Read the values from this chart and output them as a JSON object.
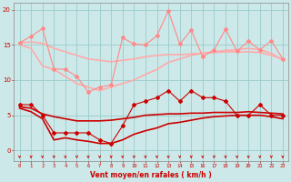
{
  "bg_color": "#cce8e8",
  "grid_color": "#99cccc",
  "x": [
    0,
    1,
    2,
    3,
    4,
    5,
    6,
    7,
    8,
    9,
    10,
    11,
    12,
    13,
    14,
    15,
    16,
    17,
    18,
    19,
    20,
    21,
    22,
    23
  ],
  "xlabel": "Vent moyen/en rafales ( km/h )",
  "xlabel_color": "#cc0000",
  "tick_color": "#cc0000",
  "ylabel_ticks": [
    0,
    5,
    10,
    15,
    20
  ],
  "ylim": [
    -1.5,
    21
  ],
  "xlim": [
    -0.5,
    23.5
  ],
  "line1_y": [
    15.3,
    16.2,
    17.3,
    11.6,
    11.5,
    10.5,
    8.3,
    9.0,
    9.3,
    16.0,
    15.1,
    15.0,
    16.3,
    19.8,
    15.1,
    17.1,
    13.3,
    14.3,
    17.2,
    14.1,
    15.5,
    14.3,
    15.6,
    13.0
  ],
  "line1_color": "#ff8888",
  "line1_marker": "D",
  "line1_ms": 2.0,
  "line1_lw": 0.8,
  "line2_y": [
    15.3,
    15.4,
    15.2,
    14.5,
    14.0,
    13.5,
    13.0,
    12.8,
    12.6,
    12.8,
    13.0,
    13.3,
    13.5,
    13.6,
    13.6,
    13.7,
    13.8,
    13.9,
    14.0,
    14.0,
    14.0,
    13.9,
    13.5,
    13.0
  ],
  "line2_color": "#ffaaaa",
  "line2_lw": 1.2,
  "line3_y": [
    15.0,
    14.5,
    12.0,
    11.5,
    10.5,
    9.5,
    9.0,
    8.5,
    9.0,
    9.5,
    10.0,
    10.8,
    11.5,
    12.5,
    13.0,
    13.5,
    13.8,
    14.0,
    14.2,
    14.3,
    14.5,
    14.3,
    13.8,
    12.8
  ],
  "line3_color": "#ffaaaa",
  "line3_lw": 1.2,
  "line4_y": [
    6.5,
    6.5,
    5.0,
    2.5,
    2.5,
    2.5,
    2.5,
    1.5,
    1.0,
    3.5,
    6.5,
    7.0,
    7.5,
    8.5,
    7.0,
    8.5,
    7.5,
    7.5,
    7.0,
    5.0,
    5.0,
    6.5,
    5.0,
    5.0
  ],
  "line4_color": "#cc0000",
  "line4_marker": "D",
  "line4_ms": 2.0,
  "line4_lw": 0.8,
  "line5_y": [
    6.2,
    6.0,
    5.2,
    4.8,
    4.5,
    4.2,
    4.2,
    4.2,
    4.3,
    4.5,
    4.7,
    5.0,
    5.1,
    5.2,
    5.2,
    5.3,
    5.3,
    5.4,
    5.4,
    5.4,
    5.5,
    5.4,
    5.3,
    5.2
  ],
  "line5_color": "#cc0000",
  "line5_lw": 1.2,
  "line6_y": [
    6.0,
    5.5,
    4.5,
    1.5,
    1.8,
    1.5,
    1.3,
    1.0,
    1.0,
    1.5,
    2.3,
    2.8,
    3.2,
    3.8,
    4.0,
    4.3,
    4.6,
    4.8,
    4.9,
    5.0,
    5.0,
    5.0,
    4.8,
    4.5
  ],
  "line6_color": "#cc0000",
  "line6_lw": 1.2,
  "arrow_color_top": "#ff8888",
  "arrow_color_bot": "#cc0000"
}
